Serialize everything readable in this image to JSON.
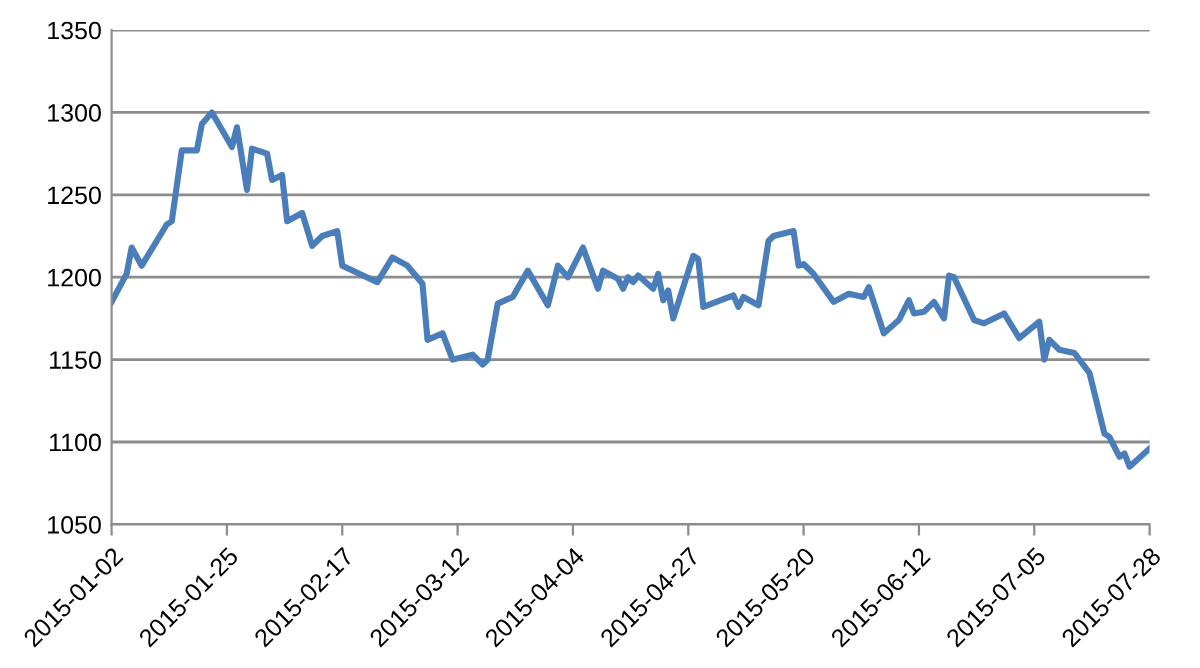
{
  "chart_data": {
    "type": "line",
    "grid": "y",
    "marker": "none",
    "line_style": "solid",
    "xlim": [
      "2015-01-02",
      "2015-07-28"
    ],
    "xticks": [
      "2015-01-02",
      "2015-01-25",
      "2015-02-17",
      "2015-03-12",
      "2015-04-04",
      "2015-04-27",
      "2015-05-20",
      "2015-06-12",
      "2015-07-05",
      "2015-07-28"
    ],
    "ylim": [
      1050,
      1350
    ],
    "yticks": [
      1050,
      1100,
      1150,
      1200,
      1250,
      1300,
      1350
    ],
    "series": [
      {
        "color": "#4a7ebb",
        "x": [
          "2015-01-02",
          "2015-01-05",
          "2015-01-06",
          "2015-01-08",
          "2015-01-13",
          "2015-01-14",
          "2015-01-16",
          "2015-01-19",
          "2015-01-20",
          "2015-01-22",
          "2015-01-26",
          "2015-01-27",
          "2015-01-29",
          "2015-01-30",
          "2015-02-02",
          "2015-02-03",
          "2015-02-05",
          "2015-02-06",
          "2015-02-09",
          "2015-02-11",
          "2015-02-13",
          "2015-02-16",
          "2015-02-17",
          "2015-02-24",
          "2015-02-27",
          "2015-03-02",
          "2015-03-05",
          "2015-03-06",
          "2015-03-09",
          "2015-03-11",
          "2015-03-15",
          "2015-03-17",
          "2015-03-18",
          "2015-03-20",
          "2015-03-23",
          "2015-03-26",
          "2015-03-30",
          "2015-04-01",
          "2015-04-03",
          "2015-04-06",
          "2015-04-09",
          "2015-04-10",
          "2015-04-13",
          "2015-04-14",
          "2015-04-15",
          "2015-04-16",
          "2015-04-17",
          "2015-04-20",
          "2015-04-21",
          "2015-04-22",
          "2015-04-23",
          "2015-04-24",
          "2015-04-28",
          "2015-04-29",
          "2015-04-30",
          "2015-05-06",
          "2015-05-07",
          "2015-05-08",
          "2015-05-11",
          "2015-05-13",
          "2015-05-14",
          "2015-05-18",
          "2015-05-19",
          "2015-05-20",
          "2015-05-22",
          "2015-05-26",
          "2015-05-29",
          "2015-06-01",
          "2015-06-02",
          "2015-06-05",
          "2015-06-08",
          "2015-06-10",
          "2015-06-11",
          "2015-06-13",
          "2015-06-15",
          "2015-06-17",
          "2015-06-18",
          "2015-06-19",
          "2015-06-23",
          "2015-06-25",
          "2015-06-29",
          "2015-07-02",
          "2015-07-06",
          "2015-07-07",
          "2015-07-08",
          "2015-07-10",
          "2015-07-13",
          "2015-07-16",
          "2015-07-19",
          "2015-07-20",
          "2015-07-22",
          "2015-07-23",
          "2015-07-24",
          "2015-07-28"
        ],
        "values": [
          1185,
          1202,
          1218,
          1207,
          1232,
          1234,
          1277,
          1277,
          1293,
          1300,
          1279,
          1291,
          1253,
          1278,
          1275,
          1259,
          1262,
          1234,
          1239,
          1219,
          1225,
          1228,
          1207,
          1197,
          1212,
          1207,
          1196,
          1162,
          1166,
          1150,
          1153,
          1147,
          1150,
          1184,
          1188,
          1204,
          1183,
          1207,
          1200,
          1218,
          1193,
          1204,
          1199,
          1193,
          1200,
          1197,
          1201,
          1193,
          1202,
          1186,
          1192,
          1175,
          1213,
          1211,
          1182,
          1189,
          1182,
          1188,
          1183,
          1222,
          1225,
          1228,
          1207,
          1208,
          1202,
          1185,
          1190,
          1188,
          1194,
          1166,
          1174,
          1186,
          1178,
          1179,
          1185,
          1175,
          1201,
          1200,
          1174,
          1172,
          1178,
          1163,
          1173,
          1150,
          1162,
          1156,
          1154,
          1142,
          1105,
          1103,
          1091,
          1093,
          1085,
          1096
        ]
      }
    ]
  }
}
